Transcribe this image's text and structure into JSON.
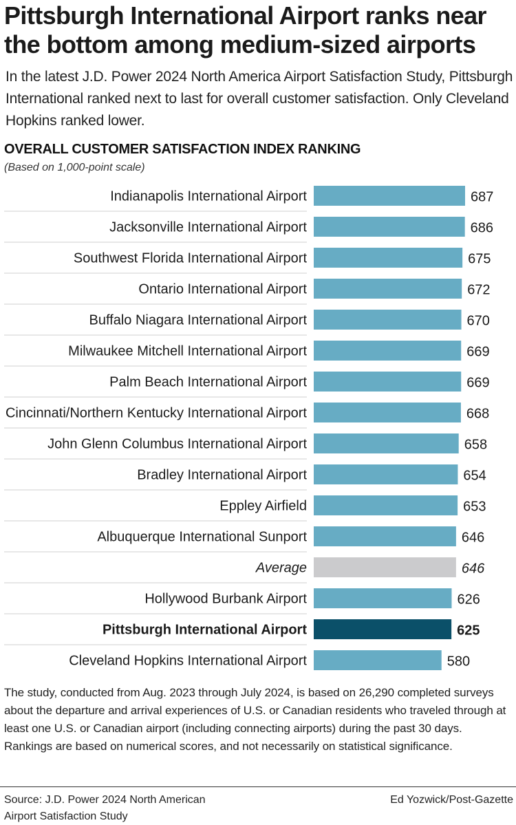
{
  "header": {
    "title": "Pittsburgh International Airport ranks near the bottom among medium-sized airports",
    "subtitle": "In the latest J.D. Power 2024 North America Airport Satisfaction Study, Pittsburgh International ranked next to last for overall customer satisfaction. Only Cleveland Hopkins ranked lower."
  },
  "chart_data": {
    "type": "bar",
    "orientation": "horizontal",
    "title": "OVERALL CUSTOMER SATISFACTION INDEX RANKING",
    "subtitle": "(Based on 1,000-point scale)",
    "categories": [
      "Indianapolis International Airport",
      "Jacksonville International Airport",
      "Southwest Florida International Airport",
      "Ontario International Airport",
      "Buffalo Niagara International Airport",
      "Milwaukee Mitchell International Airport",
      "Palm Beach International Airport",
      "Cincinnati/Northern Kentucky International Airport",
      "John Glenn Columbus International Airport",
      "Bradley International Airport",
      "Eppley Airfield",
      "Albuquerque International Sunport",
      "Average",
      "Hollywood Burbank Airport",
      "Pittsburgh International Airport",
      "Cleveland Hopkins International Airport"
    ],
    "values": [
      687,
      686,
      675,
      672,
      670,
      669,
      669,
      668,
      658,
      654,
      653,
      646,
      646,
      626,
      625,
      580
    ],
    "highlight_index": 14,
    "average_index": 12,
    "colors": {
      "bar": "#67acc4",
      "highlight": "#0b5069",
      "average": "#cbcbcd",
      "separator": "#cfcfcf"
    },
    "grid": false,
    "legend": "none"
  },
  "footnote": "The study, conducted from Aug. 2023 through July 2024, is based on 26,290 completed surveys about the departure and arrival experiences of U.S. or Canadian residents who traveled through at least one U.S. or Canadian airport (including connecting airports) during the past 30 days. Rankings are based on numerical scores, and not necessarily on statistical significance.",
  "source": "Source: J.D. Power 2024 North American Airport Satisfaction Study",
  "credit": "Ed Yozwick/Post-Gazette"
}
